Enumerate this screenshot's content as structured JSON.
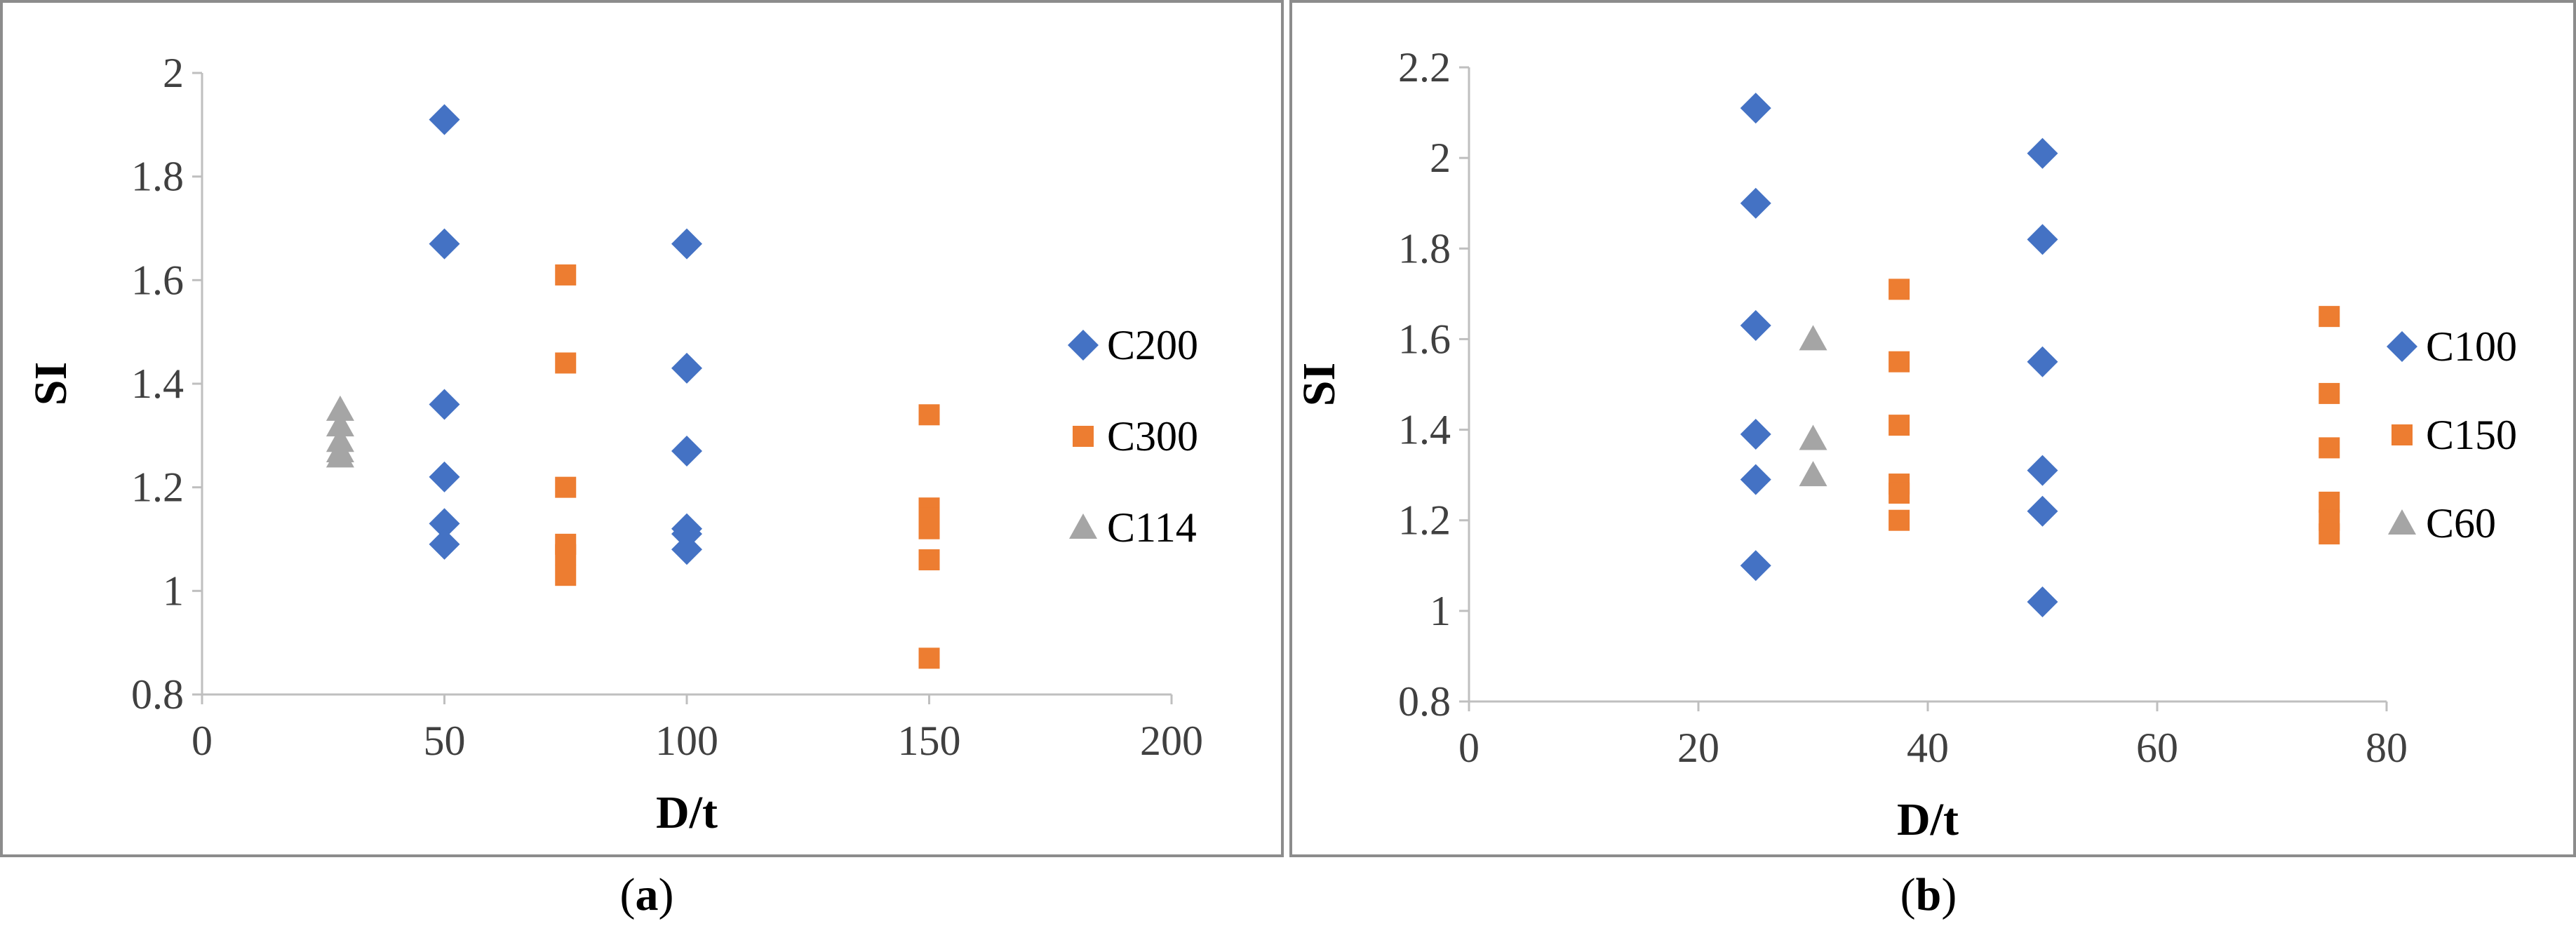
{
  "chart_data": [
    {
      "type": "scatter",
      "panel_label": "a",
      "xlabel": "D/t",
      "ylabel": "SI",
      "xlim": [
        0,
        200
      ],
      "ylim": [
        0.8,
        2
      ],
      "xticks": [
        0,
        50,
        100,
        150,
        200
      ],
      "yticks": [
        0.8,
        1,
        1.2,
        1.4,
        1.6,
        1.8,
        2
      ],
      "ytick_labels": [
        "0.8",
        "1",
        "1.2",
        "1.4",
        "1.6",
        "1.8",
        "2"
      ],
      "grid": false,
      "legend_position": "right",
      "series": [
        {
          "name": "C200",
          "marker": "diamond",
          "color": "#4472C4",
          "points": [
            [
              50,
              1.91
            ],
            [
              50,
              1.67
            ],
            [
              50,
              1.36
            ],
            [
              50,
              1.22
            ],
            [
              50,
              1.13
            ],
            [
              50,
              1.09
            ],
            [
              100,
              1.67
            ],
            [
              100,
              1.43
            ],
            [
              100,
              1.27
            ],
            [
              100,
              1.12
            ],
            [
              100,
              1.11
            ],
            [
              100,
              1.08
            ]
          ]
        },
        {
          "name": "C300",
          "marker": "square",
          "color": "#ED7D31",
          "points": [
            [
              75,
              1.61
            ],
            [
              75,
              1.44
            ],
            [
              75,
              1.2
            ],
            [
              75,
              1.09
            ],
            [
              75,
              1.07
            ],
            [
              75,
              1.03
            ],
            [
              150,
              1.34
            ],
            [
              150,
              1.16
            ],
            [
              150,
              1.14
            ],
            [
              150,
              1.12
            ],
            [
              150,
              1.06
            ],
            [
              150,
              0.87
            ]
          ]
        },
        {
          "name": "C114",
          "marker": "triangle",
          "color": "#A5A5A5",
          "points": [
            [
              28.5,
              1.35
            ],
            [
              28.5,
              1.32
            ],
            [
              28.5,
              1.29
            ],
            [
              28.5,
              1.27
            ],
            [
              28.5,
              1.26
            ]
          ]
        }
      ]
    },
    {
      "type": "scatter",
      "panel_label": "b",
      "xlabel": "D/t",
      "ylabel": "SI",
      "xlim": [
        0,
        80
      ],
      "ylim": [
        0.8,
        2.2
      ],
      "xticks": [
        0,
        20,
        40,
        60,
        80
      ],
      "yticks": [
        0.8,
        1,
        1.2,
        1.4,
        1.6,
        1.8,
        2,
        2.2
      ],
      "ytick_labels": [
        "0.8",
        "1",
        "1.2",
        "1.4",
        "1.6",
        "1.8",
        "2",
        "2.2"
      ],
      "grid": false,
      "legend_position": "right",
      "series": [
        {
          "name": "C100",
          "marker": "diamond",
          "color": "#4472C4",
          "points": [
            [
              25,
              2.11
            ],
            [
              25,
              1.9
            ],
            [
              25,
              1.63
            ],
            [
              25,
              1.39
            ],
            [
              25,
              1.29
            ],
            [
              25,
              1.1
            ],
            [
              50,
              2.01
            ],
            [
              50,
              1.82
            ],
            [
              50,
              1.55
            ],
            [
              50,
              1.31
            ],
            [
              50,
              1.22
            ],
            [
              50,
              1.02
            ]
          ]
        },
        {
          "name": "C150",
          "marker": "square",
          "color": "#ED7D31",
          "points": [
            [
              37.5,
              1.71
            ],
            [
              37.5,
              1.55
            ],
            [
              37.5,
              1.41
            ],
            [
              37.5,
              1.28
            ],
            [
              37.5,
              1.26
            ],
            [
              37.5,
              1.2
            ],
            [
              75,
              1.65
            ],
            [
              75,
              1.48
            ],
            [
              75,
              1.36
            ],
            [
              75,
              1.24
            ],
            [
              75,
              1.2
            ],
            [
              75,
              1.17
            ]
          ]
        },
        {
          "name": "C60",
          "marker": "triangle",
          "color": "#A5A5A5",
          "points": [
            [
              30,
              1.6
            ],
            [
              30,
              1.38
            ],
            [
              30,
              1.3
            ]
          ]
        }
      ]
    }
  ]
}
